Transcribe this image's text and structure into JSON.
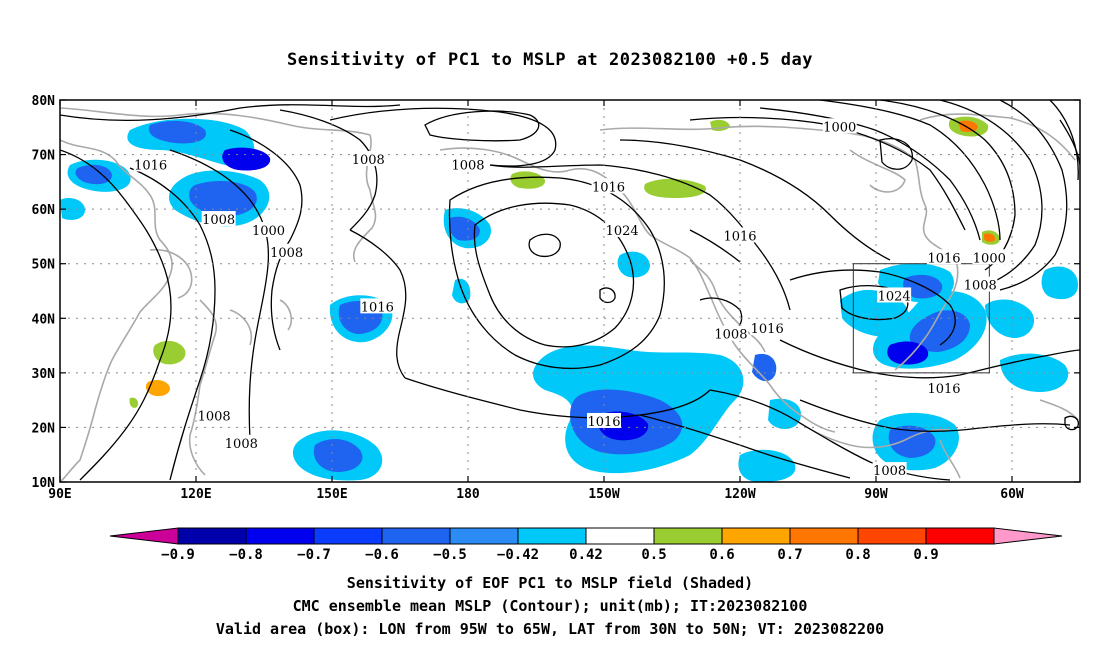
{
  "title": "Sensitivity of PC1 to MSLP at 2023082100 +0.5 day",
  "lat_labels": [
    "80N",
    "70N",
    "60N",
    "50N",
    "40N",
    "30N",
    "20N",
    "10N"
  ],
  "lon_labels": [
    "90E",
    "120E",
    "150E",
    "180",
    "150W",
    "120W",
    "90W",
    "60W"
  ],
  "map_extent": {
    "lon_min": 90,
    "lon_max": 315,
    "lat_min": 10,
    "lat_max": 80
  },
  "valid_box": {
    "lon_west": 265,
    "lon_east": 295,
    "lat_south": 30,
    "lat_north": 50
  },
  "contour_labels": [
    {
      "text": "1016",
      "lon": 110,
      "lat": 68
    },
    {
      "text": "1008",
      "lon": 125,
      "lat": 58
    },
    {
      "text": "1000",
      "lon": 136,
      "lat": 56
    },
    {
      "text": "1008",
      "lon": 140,
      "lat": 52
    },
    {
      "text": "1008",
      "lon": 158,
      "lat": 69
    },
    {
      "text": "1008",
      "lon": 180,
      "lat": 68
    },
    {
      "text": "1016",
      "lon": 160,
      "lat": 42
    },
    {
      "text": "1016",
      "lon": 211,
      "lat": 64
    },
    {
      "text": "1024",
      "lon": 214,
      "lat": 56
    },
    {
      "text": "1016",
      "lon": 240,
      "lat": 55
    },
    {
      "text": "1000",
      "lon": 262,
      "lat": 75
    },
    {
      "text": "1016",
      "lon": 285,
      "lat": 51
    },
    {
      "text": "1000",
      "lon": 295,
      "lat": 51
    },
    {
      "text": "1008",
      "lon": 293,
      "lat": 46
    },
    {
      "text": "1024",
      "lon": 274,
      "lat": 44
    },
    {
      "text": "1008",
      "lon": 238,
      "lat": 37
    },
    {
      "text": "1016",
      "lon": 246,
      "lat": 38
    },
    {
      "text": "1016",
      "lon": 285,
      "lat": 27
    },
    {
      "text": "1016",
      "lon": 210,
      "lat": 21
    },
    {
      "text": "1008",
      "lon": 124,
      "lat": 22
    },
    {
      "text": "1008",
      "lon": 130,
      "lat": 17
    },
    {
      "text": "1008",
      "lon": 273,
      "lat": 12
    }
  ],
  "colorbar": {
    "labels": [
      "−0.9",
      "−0.8",
      "−0.7",
      "−0.6",
      "−0.5",
      "−0.42",
      "0.42",
      "0.5",
      "0.6",
      "0.7",
      "0.8",
      "0.9"
    ],
    "colors": [
      "#cc0099",
      "#0000aa",
      "#0000ee",
      "#0a3cff",
      "#1e64f0",
      "#2b8cf5",
      "#00c8f8",
      "#ffffff",
      "#9acd32",
      "#ffa500",
      "#ff7700",
      "#ff4500",
      "#ff0000",
      "#ff99cc"
    ]
  },
  "footer": {
    "line1": "Sensitivity of EOF PC1 to MSLP field (Shaded)",
    "line2": "CMC ensemble mean MSLP (Contour); unit(mb); IT:2023082100",
    "line3": "Valid area (box): LON from 95W to 65W, LAT from 30N to 50N; VT: 2023082200"
  }
}
